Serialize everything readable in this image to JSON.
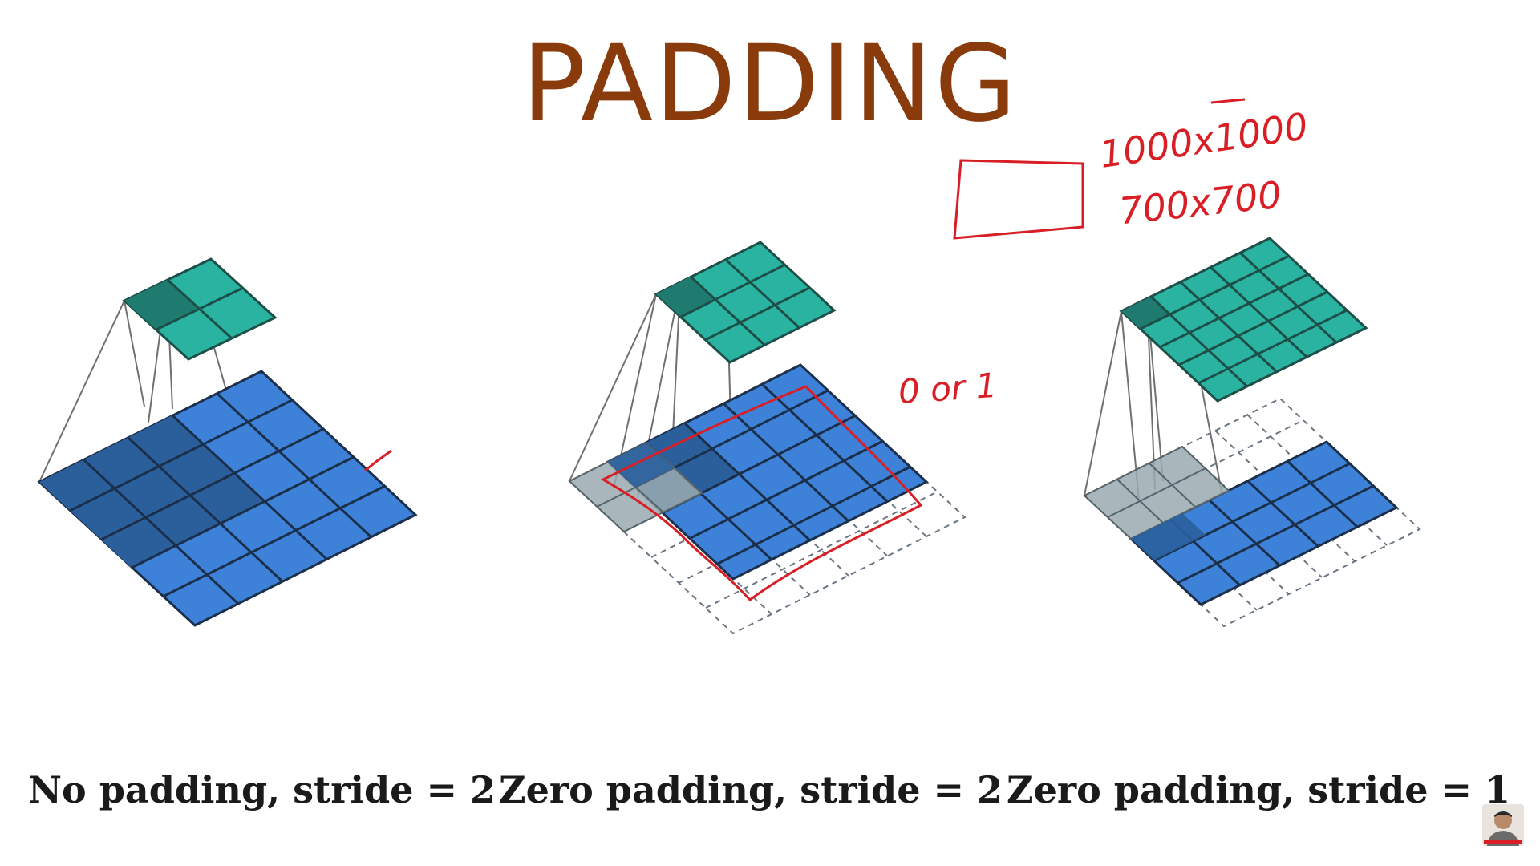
{
  "title": "PADDING",
  "captions": [
    "No padding, stride = 2",
    "Zero padding, stride = 2",
    "Zero padding, stride = 1"
  ],
  "annotations": {
    "dims_large": "1000x1000",
    "dims_small": "700x700",
    "pad_value": "0 or 1"
  },
  "colors": {
    "title": "#8a3b0c",
    "input_grid": "#3d82d8",
    "input_highlight": "#2a5f9c",
    "output_grid": "#2ab3a1",
    "output_highlight": "#1f7a70",
    "padding_cell": "#9aaab0",
    "annotation_ink": "#d81f26"
  }
}
